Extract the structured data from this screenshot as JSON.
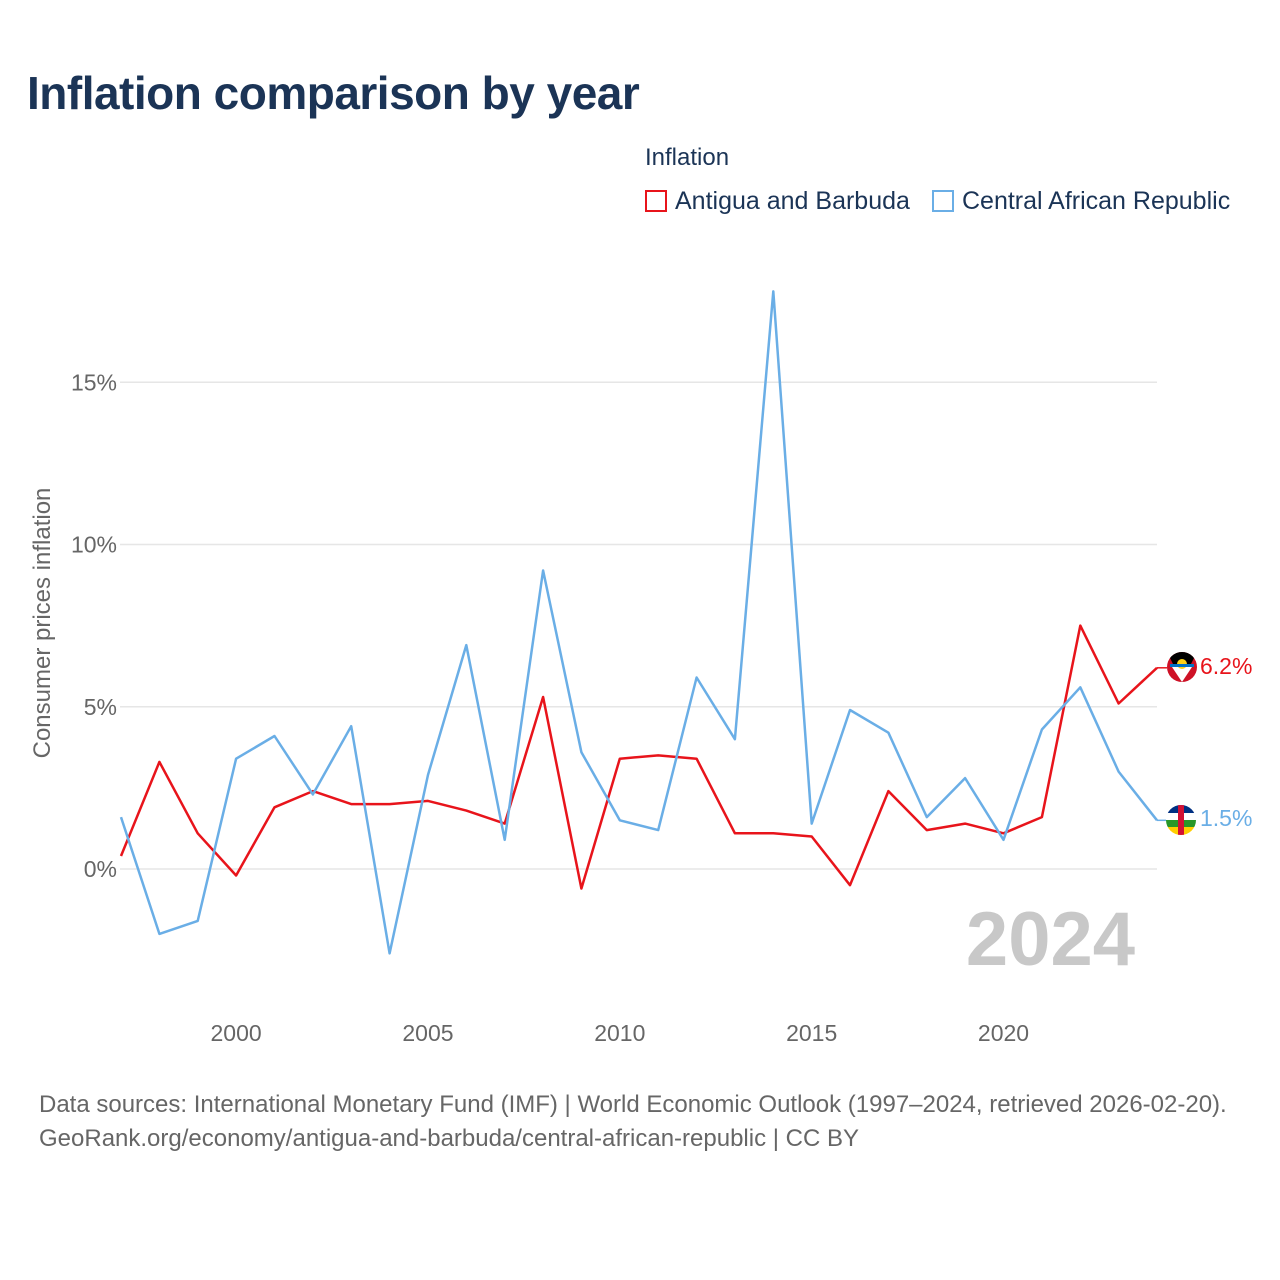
{
  "title": "Inflation comparison by year",
  "legend": {
    "title": "Inflation",
    "items": [
      {
        "label": "Antigua and Barbuda",
        "color": "#e8141b"
      },
      {
        "label": "Central African Republic",
        "color": "#6aaee6"
      }
    ]
  },
  "year_watermark": "2024",
  "footer": {
    "sources": "Data sources: International Monetary Fund (IMF) | World Economic Outlook (1997–2024, retrieved 2026-02-20).",
    "link": "GeoRank.org/economy/antigua-and-barbuda/central-african-republic | CC BY"
  },
  "chart_data": {
    "type": "line",
    "title": "Inflation comparison by year",
    "xlabel": "",
    "ylabel": "Consumer prices inflation",
    "xlim": [
      1997,
      2024
    ],
    "ylim": [
      -3.5,
      19
    ],
    "x_ticks": [
      2000,
      2005,
      2010,
      2015,
      2020
    ],
    "y_ticks": [
      0,
      5,
      10,
      15
    ],
    "y_tick_labels": [
      "0%",
      "5%",
      "10%",
      "15%"
    ],
    "grid": true,
    "x": [
      1997,
      1998,
      1999,
      2000,
      2001,
      2002,
      2003,
      2004,
      2005,
      2006,
      2007,
      2008,
      2009,
      2010,
      2011,
      2012,
      2013,
      2014,
      2015,
      2016,
      2017,
      2018,
      2019,
      2020,
      2021,
      2022,
      2023,
      2024
    ],
    "series": [
      {
        "name": "Antigua and Barbuda",
        "color": "#e8141b",
        "end_label": "6.2%",
        "values": [
          0.4,
          3.3,
          1.1,
          -0.2,
          1.9,
          2.4,
          2.0,
          2.0,
          2.1,
          1.8,
          1.4,
          5.3,
          -0.6,
          3.4,
          3.5,
          3.4,
          1.1,
          1.1,
          1.0,
          -0.5,
          2.4,
          1.2,
          1.4,
          1.1,
          1.6,
          7.5,
          5.1,
          6.2
        ]
      },
      {
        "name": "Central African Republic",
        "color": "#6aaee6",
        "end_label": "1.5%",
        "values": [
          1.6,
          -2.0,
          -1.6,
          3.4,
          4.1,
          2.3,
          4.4,
          -2.6,
          2.9,
          6.9,
          0.9,
          9.2,
          3.6,
          1.5,
          1.2,
          5.9,
          4.0,
          17.8,
          1.4,
          4.9,
          4.2,
          1.6,
          2.8,
          0.9,
          4.3,
          5.6,
          3.0,
          1.5
        ]
      }
    ]
  }
}
